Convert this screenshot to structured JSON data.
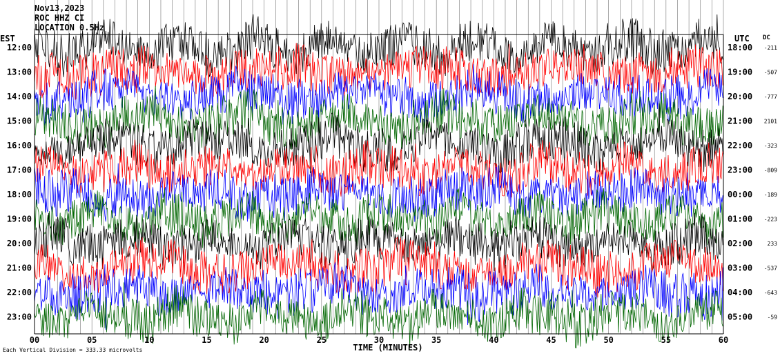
{
  "header": {
    "date": "Nov13,2023",
    "station": "ROC HHZ CI",
    "filter": "LOCATION 0.5Hz"
  },
  "footer": {
    "scale_note": "Each Vertical Division =  333.33 microvolts"
  },
  "chart_data": {
    "type": "line",
    "title": "",
    "xlabel": "TIME (MINUTES)",
    "left_axis_label": "EST",
    "right_axis_label": "UTC",
    "dc_label": "DC",
    "xlim": [
      0,
      60
    ],
    "x_ticks": [
      "00",
      "05",
      "10",
      "15",
      "20",
      "25",
      "30",
      "35",
      "40",
      "45",
      "50",
      "55",
      "60"
    ],
    "grid_vertical": true,
    "color_cycle": [
      "#000000",
      "#ff0000",
      "#0000ff",
      "#006600"
    ],
    "rows": [
      {
        "est": "12:00",
        "utc": "18:00",
        "dc": "-211"
      },
      {
        "est": "13:00",
        "utc": "19:00",
        "dc": "-507"
      },
      {
        "est": "14:00",
        "utc": "20:00",
        "dc": "-777"
      },
      {
        "est": "15:00",
        "utc": "21:00",
        "dc": "2101"
      },
      {
        "est": "16:00",
        "utc": "22:00",
        "dc": "-323"
      },
      {
        "est": "17:00",
        "utc": "23:00",
        "dc": "-809"
      },
      {
        "est": "18:00",
        "utc": "00:00",
        "dc": "-189"
      },
      {
        "est": "19:00",
        "utc": "01:00",
        "dc": "-223"
      },
      {
        "est": "20:00",
        "utc": "02:00",
        "dc": "233"
      },
      {
        "est": "21:00",
        "utc": "03:00",
        "dc": "-537"
      },
      {
        "est": "22:00",
        "utc": "04:00",
        "dc": "-643"
      },
      {
        "est": "23:00",
        "utc": "05:00",
        "dc": "-59"
      }
    ]
  }
}
